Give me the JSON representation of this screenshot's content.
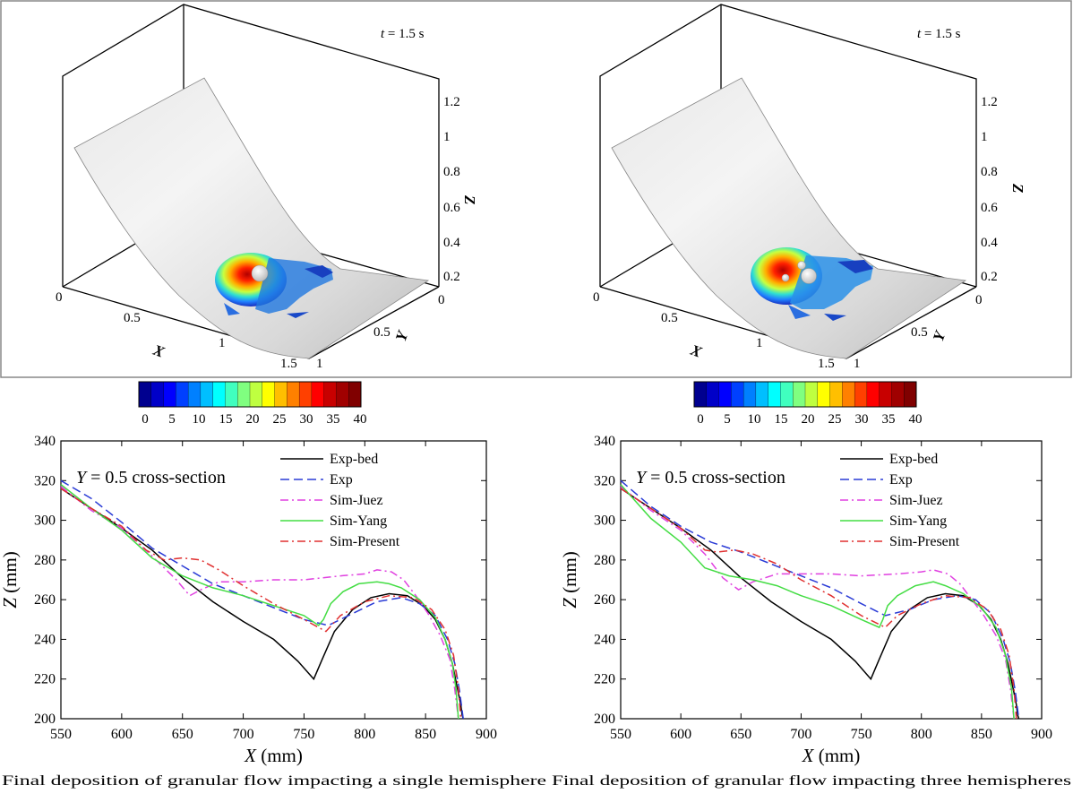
{
  "panels_3d": [
    {
      "time_label_italic": "t",
      "time_label_rest": " = 1.5 s",
      "axes": {
        "x_label": "X",
        "y_label": "Y",
        "z_label": "Z",
        "x_ticks": [
          "0",
          "0.5",
          "1",
          "1.5"
        ],
        "y_ticks": [
          "0",
          "0.5",
          "1"
        ],
        "z_ticks": [
          "0.2",
          "0.4",
          "0.6",
          "0.8",
          "1",
          "1.2"
        ]
      },
      "obstacle": "single hemisphere"
    },
    {
      "time_label_italic": "t",
      "time_label_rest": " = 1.5 s",
      "axes": {
        "x_label": "X",
        "y_label": "Y",
        "z_label": "Z",
        "x_ticks": [
          "0",
          "0.5",
          "1",
          "1.5"
        ],
        "y_ticks": [
          "0",
          "0.5",
          "1"
        ],
        "z_ticks": [
          "0.2",
          "0.4",
          "0.6",
          "0.8",
          "1",
          "1.2"
        ]
      },
      "obstacle": "three hemispheres"
    }
  ],
  "colorbar": {
    "ticks": [
      "0",
      "5",
      "10",
      "15",
      "20",
      "25",
      "30",
      "35",
      "40"
    ],
    "colors": [
      "#00008f",
      "#0000c8",
      "#0000ff",
      "#0040ff",
      "#0080ff",
      "#00bfff",
      "#00ffff",
      "#40ffbf",
      "#80ff80",
      "#bfff40",
      "#ffff00",
      "#ffbf00",
      "#ff8000",
      "#ff4000",
      "#ff0000",
      "#c80000",
      "#a00000",
      "#800000"
    ]
  },
  "captions": [
    "Final deposition of granular flow impacting  a single hemisphere",
    "Final deposition of granular flow impacting three hemispheres"
  ],
  "legend_entries": [
    {
      "label": "Exp-bed",
      "color": "#000000",
      "dash": "solid"
    },
    {
      "label": "Exp",
      "color": "#2a3bd6",
      "dash": "dash"
    },
    {
      "label": "Sim-Juez",
      "color": "#e040e0",
      "dash": "dashdot"
    },
    {
      "label": "Sim-Yang",
      "color": "#44dd44",
      "dash": "solid"
    },
    {
      "label": "Sim-Present",
      "color": "#e03030",
      "dash": "dashdot"
    }
  ],
  "chart_data": [
    {
      "type": "line",
      "annotation_italic": "Y",
      "annotation_rest": " = 0.5 cross-section",
      "xlabel_italic": "X",
      "xlabel_rest": " (mm)",
      "ylabel_italic": "Z",
      "ylabel_rest": " (mm)",
      "xlim": [
        550,
        900
      ],
      "ylim": [
        200,
        340
      ],
      "xticks": [
        550,
        600,
        650,
        700,
        750,
        800,
        850,
        900
      ],
      "yticks": [
        200,
        220,
        240,
        260,
        280,
        300,
        320,
        340
      ],
      "series": [
        {
          "name": "Exp-bed",
          "x": [
            550,
            575,
            600,
            625,
            650,
            675,
            700,
            725,
            745,
            758,
            765,
            775,
            790,
            805,
            820,
            835,
            848,
            858,
            866,
            872,
            876,
            879,
            880,
            881
          ],
          "y": [
            316,
            306,
            296,
            285,
            271,
            259,
            249,
            240,
            229,
            220,
            230,
            244,
            255,
            261,
            263,
            262,
            257,
            250,
            240,
            228,
            216,
            207,
            202,
            200
          ]
        },
        {
          "name": "Exp",
          "x": [
            550,
            575,
            600,
            625,
            650,
            675,
            700,
            725,
            750,
            770,
            790,
            810,
            830,
            845,
            858,
            868,
            874,
            878,
            881
          ],
          "y": [
            320,
            311,
            299,
            286,
            277,
            268,
            262,
            256,
            250,
            247,
            253,
            259,
            261,
            258,
            252,
            240,
            228,
            214,
            200
          ]
        },
        {
          "name": "Sim-Juez",
          "x": [
            550,
            575,
            600,
            625,
            645,
            656,
            665,
            680,
            700,
            725,
            750,
            780,
            800,
            810,
            822,
            832,
            842,
            852,
            862,
            870,
            874,
            877
          ],
          "y": [
            317,
            305,
            296,
            282,
            270,
            262,
            265,
            269,
            269,
            270,
            270,
            272,
            273,
            275,
            274,
            270,
            262,
            253,
            242,
            230,
            215,
            200
          ]
        },
        {
          "name": "Sim-Yang",
          "x": [
            550,
            575,
            600,
            625,
            650,
            675,
            700,
            725,
            750,
            762,
            766,
            772,
            782,
            795,
            810,
            820,
            830,
            845,
            858,
            866,
            872,
            875,
            877
          ],
          "y": [
            318,
            306,
            295,
            281,
            272,
            266,
            262,
            257,
            252,
            247,
            250,
            258,
            264,
            268,
            269,
            268,
            266,
            260,
            251,
            240,
            228,
            215,
            200
          ]
        },
        {
          "name": "Sim-Present",
          "x": [
            550,
            575,
            600,
            620,
            635,
            650,
            665,
            680,
            700,
            725,
            750,
            768,
            780,
            800,
            820,
            840,
            855,
            866,
            873,
            877,
            879
          ],
          "y": [
            316,
            306,
            297,
            285,
            280,
            281,
            280,
            275,
            267,
            258,
            250,
            244,
            252,
            259,
            262,
            261,
            255,
            245,
            232,
            215,
            200
          ]
        }
      ]
    },
    {
      "type": "line",
      "annotation_italic": "Y",
      "annotation_rest": " = 0.5 cross-section",
      "xlabel_italic": "X",
      "xlabel_rest": " (mm)",
      "ylabel_italic": "Z",
      "ylabel_rest": " (mm)",
      "xlim": [
        550,
        900
      ],
      "ylim": [
        200,
        340
      ],
      "xticks": [
        550,
        600,
        650,
        700,
        750,
        800,
        850,
        900
      ],
      "yticks": [
        200,
        220,
        240,
        260,
        280,
        300,
        320,
        340
      ],
      "series": [
        {
          "name": "Exp-bed",
          "x": [
            550,
            575,
            600,
            625,
            650,
            675,
            700,
            725,
            745,
            758,
            765,
            775,
            790,
            805,
            820,
            835,
            848,
            858,
            866,
            872,
            876,
            879,
            880,
            881
          ],
          "y": [
            316,
            306,
            296,
            285,
            271,
            259,
            249,
            240,
            229,
            220,
            230,
            244,
            255,
            261,
            263,
            262,
            257,
            250,
            240,
            228,
            216,
            207,
            202,
            200
          ]
        },
        {
          "name": "Exp",
          "x": [
            550,
            575,
            600,
            625,
            650,
            675,
            700,
            725,
            750,
            770,
            790,
            810,
            830,
            845,
            858,
            868,
            874,
            878,
            881
          ],
          "y": [
            320,
            307,
            297,
            289,
            284,
            278,
            272,
            266,
            258,
            252,
            255,
            260,
            262,
            260,
            253,
            240,
            228,
            214,
            200
          ]
        },
        {
          "name": "Sim-Juez",
          "x": [
            550,
            575,
            600,
            620,
            635,
            648,
            660,
            680,
            700,
            725,
            750,
            780,
            800,
            810,
            822,
            832,
            842,
            852,
            862,
            870,
            874,
            877
          ],
          "y": [
            317,
            305,
            295,
            283,
            271,
            265,
            269,
            273,
            273,
            273,
            272,
            273,
            274,
            275,
            273,
            268,
            260,
            252,
            242,
            230,
            215,
            200
          ]
        },
        {
          "name": "Sim-Yang",
          "x": [
            550,
            575,
            600,
            620,
            640,
            660,
            680,
            700,
            725,
            750,
            765,
            768,
            772,
            780,
            795,
            810,
            820,
            835,
            850,
            862,
            870,
            875,
            877
          ],
          "y": [
            318,
            301,
            289,
            276,
            272,
            270,
            267,
            262,
            257,
            250,
            246,
            250,
            257,
            262,
            267,
            269,
            267,
            263,
            256,
            246,
            232,
            215,
            200
          ]
        },
        {
          "name": "Sim-Present",
          "x": [
            550,
            575,
            600,
            620,
            630,
            645,
            660,
            680,
            700,
            725,
            750,
            770,
            780,
            800,
            820,
            840,
            855,
            866,
            873,
            877,
            879
          ],
          "y": [
            316,
            306,
            296,
            285,
            284,
            285,
            283,
            278,
            270,
            262,
            252,
            246,
            252,
            258,
            262,
            261,
            255,
            245,
            232,
            215,
            200
          ]
        }
      ]
    }
  ]
}
